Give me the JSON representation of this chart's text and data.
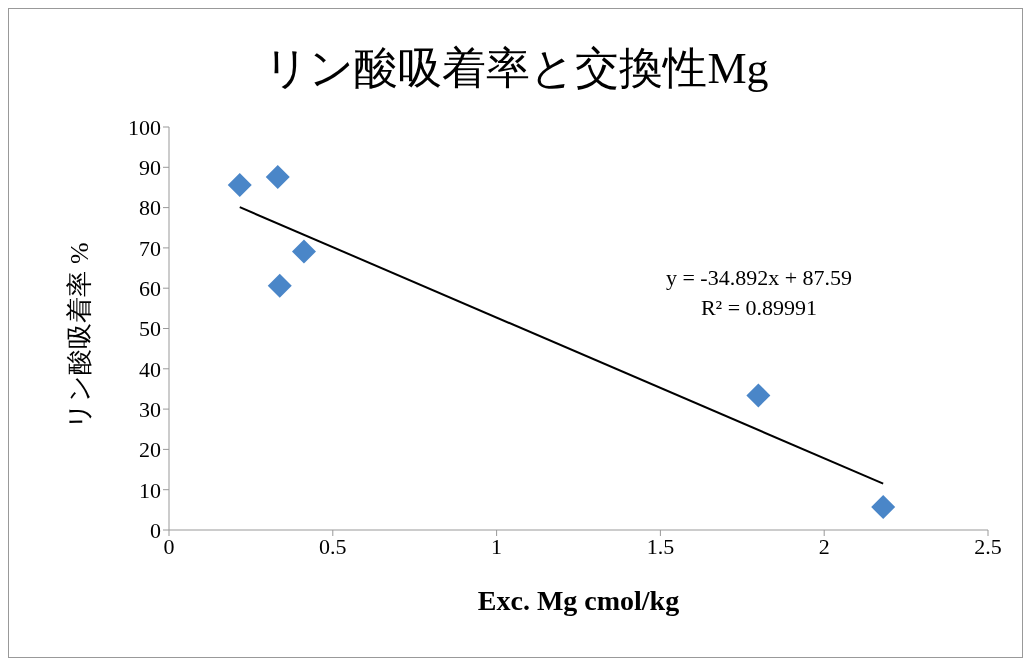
{
  "chart_data": {
    "type": "scatter",
    "title": "リン酸吸着率と交換性Mg",
    "xlabel": "Exc. Mg cmol/kg",
    "ylabel": "リン酸吸着率 %",
    "series": [
      {
        "color": "#4a86c8",
        "marker": "diamond",
        "x": [
          0.216,
          0.332,
          0.412,
          0.338,
          1.799,
          2.18
        ],
        "values": [
          85.6,
          87.6,
          69.1,
          60.6,
          33.4,
          5.7
        ]
      },
      {
        "type": "line",
        "color": "#000000",
        "marker": "none",
        "line_style": "solid",
        "x": [
          0.216,
          2.18
        ],
        "values": [
          80.1,
          11.5
        ]
      }
    ],
    "xlim": [
      0,
      2.5
    ],
    "xticks": [
      0,
      0.5,
      1,
      1.5,
      2,
      2.5
    ],
    "ylim": [
      0,
      100
    ],
    "yticks": [
      0,
      10,
      20,
      30,
      40,
      50,
      60,
      70,
      80,
      90,
      100
    ],
    "grid": false,
    "legend": false,
    "annotations": [
      "y = -34.892x + 87.59",
      "R² = 0.89991"
    ]
  }
}
